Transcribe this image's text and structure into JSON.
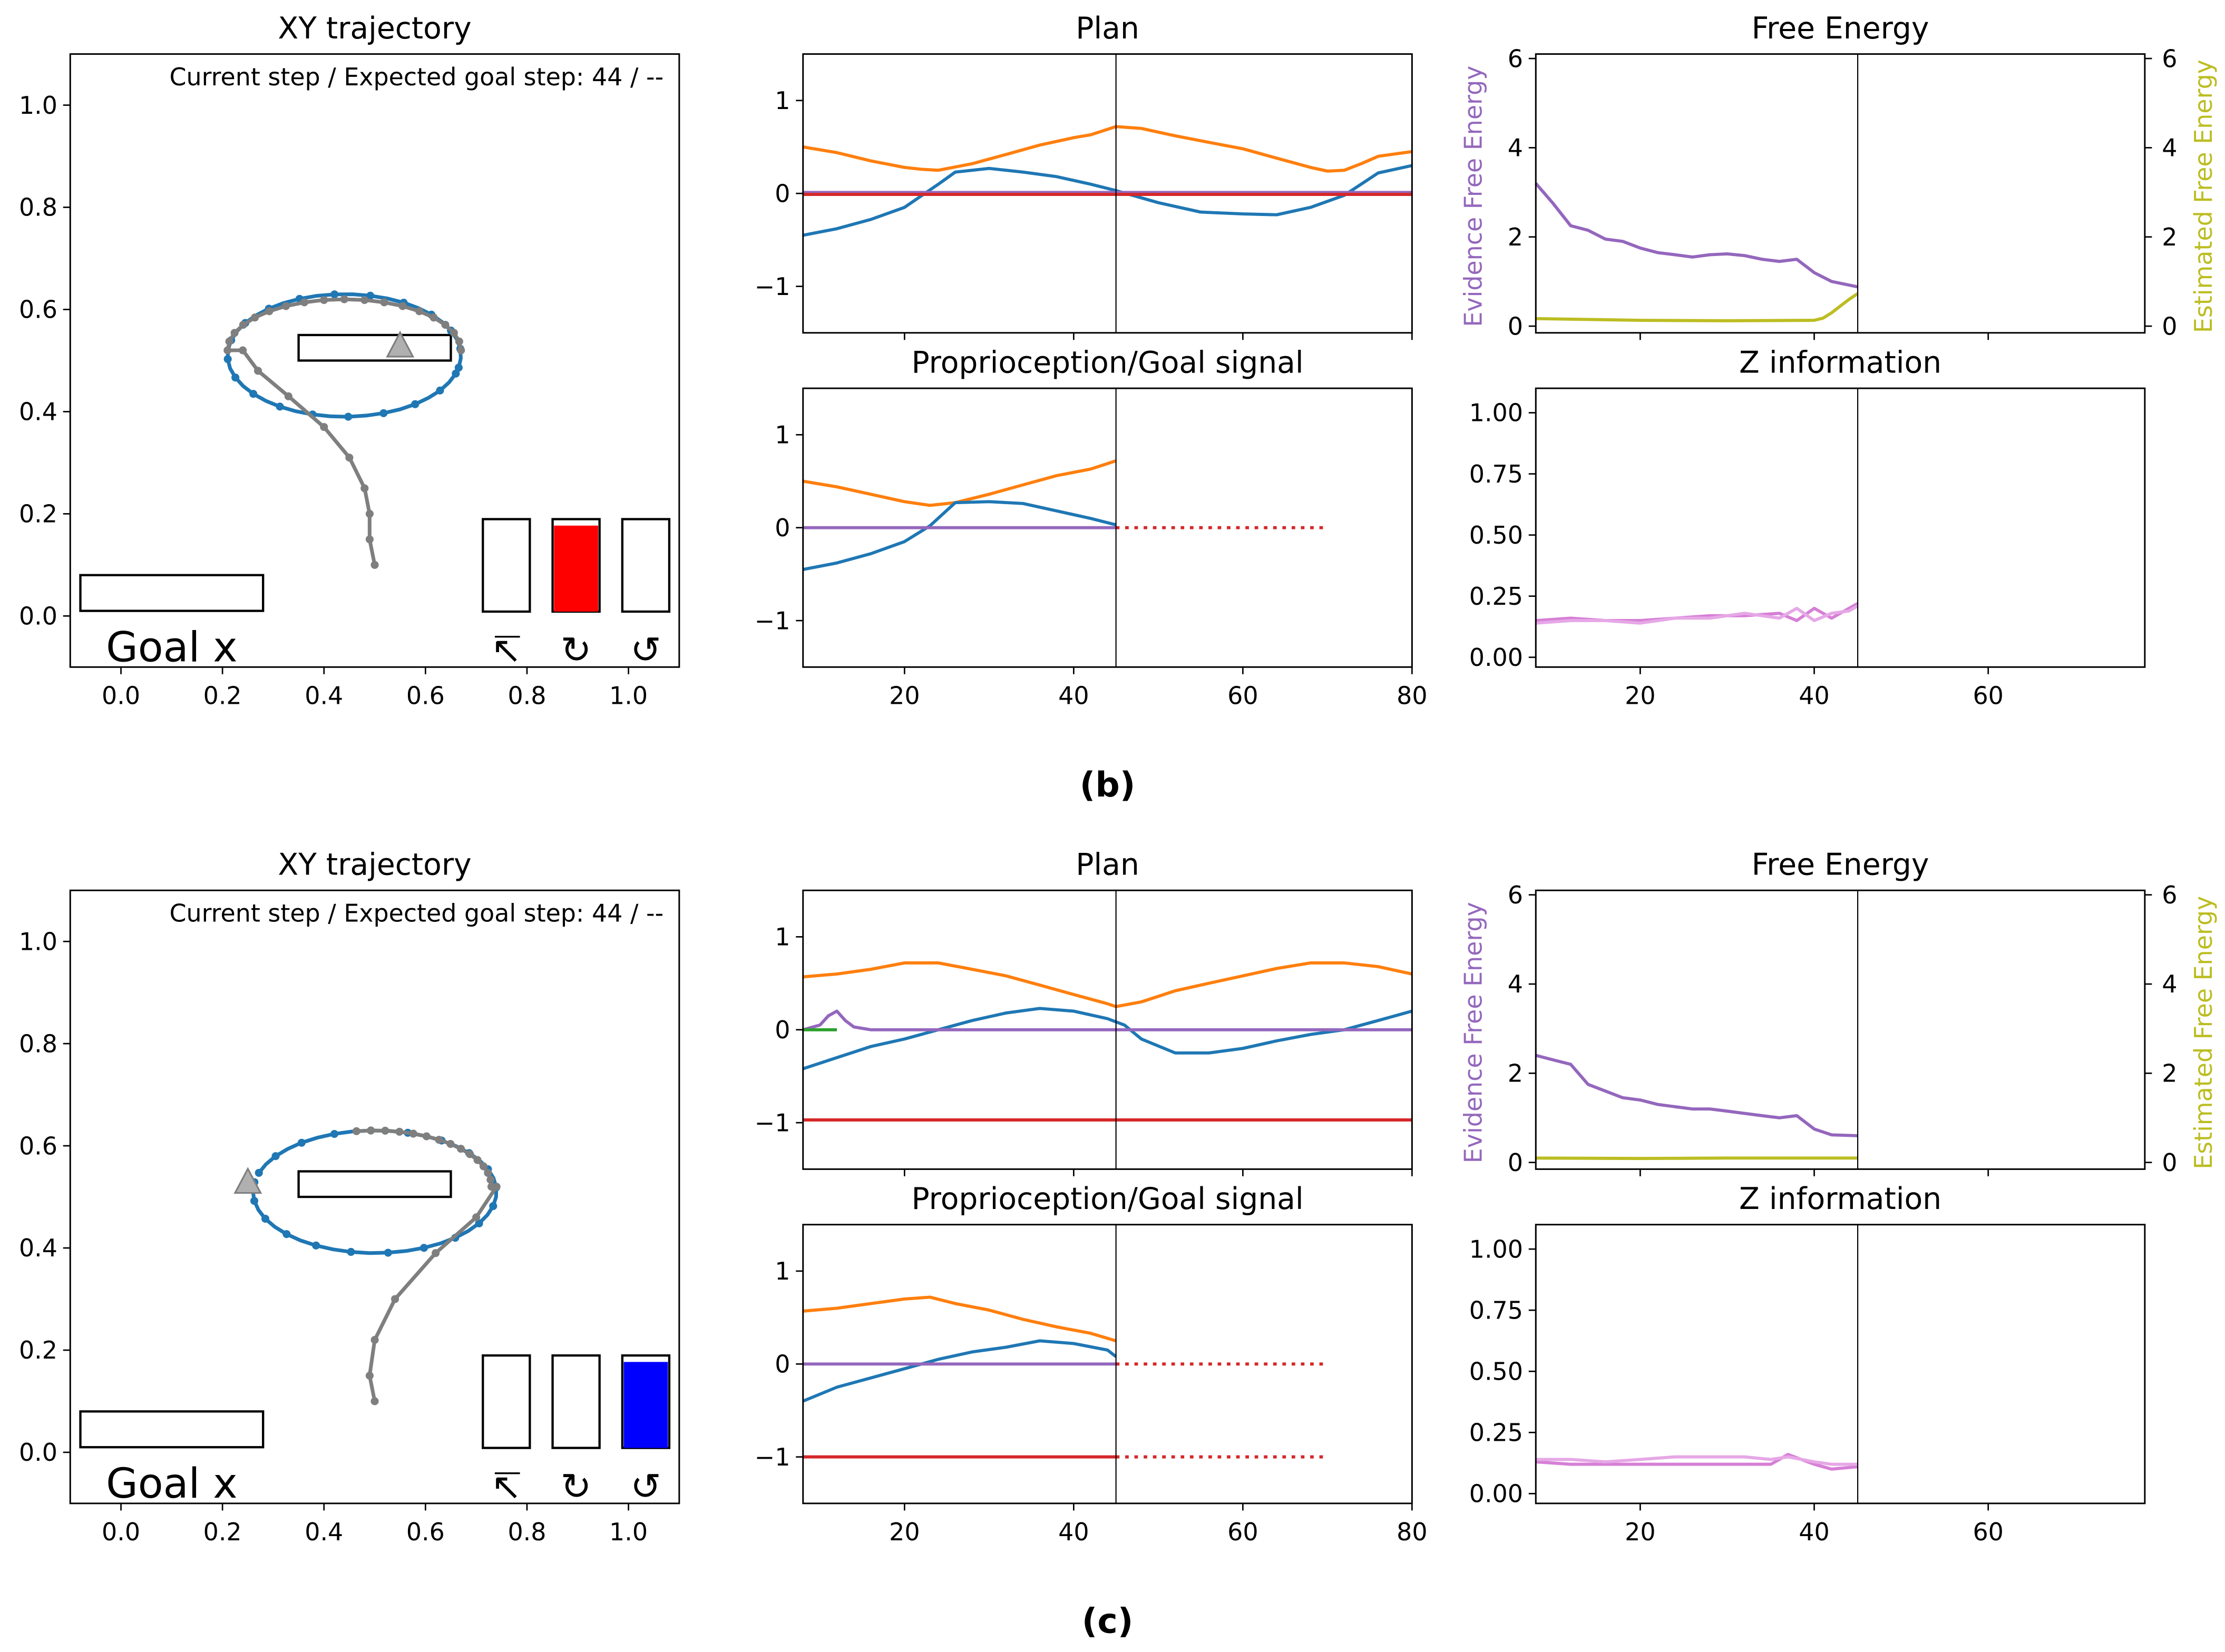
{
  "panels": [
    {
      "label": "(b)",
      "xy": {
        "title": "XY trajectory",
        "status": "Current step / Expected goal step: 44 / --",
        "goal_label": "Goal x",
        "x_ticks": [
          "0.0",
          "0.2",
          "0.4",
          "0.6",
          "0.8",
          "1.0"
        ],
        "y_ticks": [
          "0.0",
          "0.2",
          "0.4",
          "0.6",
          "0.8",
          "1.0"
        ],
        "arrow_x": 0.55,
        "indicators": [
          {
            "name": "forward",
            "glyph": "↸",
            "fill": 0.0,
            "color": "#ff0000"
          },
          {
            "name": "rotate-cw",
            "glyph": "↻",
            "fill": 0.93,
            "color": "#ff0000"
          },
          {
            "name": "rotate-ccw",
            "glyph": "↺",
            "fill": 0.0,
            "color": "#ff0000"
          }
        ]
      },
      "plan": {
        "title": "Plan",
        "y_ticks": [
          "1",
          "0",
          "−1"
        ],
        "series": [
          {
            "name": "orange",
            "color": "#ff7f0e",
            "x": [
              8,
              12,
              16,
              20,
              22,
              24,
              28,
              32,
              36,
              40,
              42,
              45,
              48,
              52,
              56,
              60,
              64,
              68,
              70,
              72,
              74,
              76,
              80
            ],
            "y": [
              0.5,
              0.44,
              0.35,
              0.28,
              0.26,
              0.25,
              0.32,
              0.42,
              0.52,
              0.6,
              0.63,
              0.72,
              0.7,
              0.62,
              0.55,
              0.48,
              0.38,
              0.28,
              0.24,
              0.25,
              0.32,
              0.4,
              0.45
            ]
          },
          {
            "name": "blue",
            "color": "#1f77b4",
            "x": [
              8,
              12,
              16,
              20,
              24,
              26,
              30,
              34,
              38,
              42,
              45,
              50,
              55,
              60,
              64,
              68,
              72,
              76,
              80
            ],
            "y": [
              -0.45,
              -0.38,
              -0.28,
              -0.15,
              0.1,
              0.23,
              0.27,
              0.23,
              0.18,
              0.1,
              0.03,
              -0.1,
              -0.2,
              -0.22,
              -0.23,
              -0.15,
              -0.02,
              0.22,
              0.3
            ]
          },
          {
            "name": "purple",
            "color": "#9467bd",
            "x": [
              8,
              80
            ],
            "y": [
              0.01,
              0.01
            ]
          },
          {
            "name": "red",
            "color": "#d62728",
            "x": [
              8,
              80
            ],
            "y": [
              -0.01,
              -0.01
            ]
          }
        ]
      },
      "proprio": {
        "title": "Proprioception/Goal signal",
        "y_ticks": [
          "1",
          "0",
          "−1"
        ],
        "x_ticks": [
          "20",
          "40",
          "60",
          "80"
        ],
        "series": [
          {
            "name": "orange",
            "color": "#ff7f0e",
            "x": [
              8,
              12,
              16,
              20,
              23,
              26,
              30,
              34,
              38,
              42,
              45
            ],
            "y": [
              0.5,
              0.44,
              0.36,
              0.28,
              0.24,
              0.27,
              0.36,
              0.46,
              0.56,
              0.63,
              0.72
            ]
          },
          {
            "name": "blue",
            "color": "#1f77b4",
            "x": [
              8,
              12,
              16,
              20,
              23,
              26,
              30,
              34,
              38,
              42,
              45
            ],
            "y": [
              -0.45,
              -0.38,
              -0.28,
              -0.15,
              0.02,
              0.27,
              0.28,
              0.26,
              0.18,
              0.1,
              0.03
            ]
          },
          {
            "name": "purple",
            "color": "#9467bd",
            "x": [
              8,
              45
            ],
            "y": [
              0,
              0
            ]
          },
          {
            "name": "red",
            "color": "#d62728",
            "dashed": true,
            "x": [
              45,
              70
            ],
            "y": [
              0,
              0
            ]
          }
        ]
      },
      "fe": {
        "title": "Free Energy",
        "ylabel_left": "Evidence Free Energy",
        "ylabel_right": "Estimated Free Energy",
        "color_left": "#9467bd",
        "color_right": "#bcbd22",
        "y_ticks": [
          "6",
          "4",
          "2",
          "0"
        ],
        "series": [
          {
            "name": "evidence",
            "color": "#9467bd",
            "x": [
              8,
              10,
              12,
              14,
              16,
              18,
              20,
              22,
              24,
              26,
              28,
              30,
              32,
              34,
              36,
              38,
              40,
              42,
              45
            ],
            "y": [
              3.2,
              2.75,
              2.25,
              2.15,
              1.95,
              1.9,
              1.75,
              1.65,
              1.6,
              1.55,
              1.6,
              1.62,
              1.58,
              1.5,
              1.45,
              1.5,
              1.2,
              1.0,
              0.88
            ]
          },
          {
            "name": "estimated",
            "color": "#bcbd22",
            "x": [
              8,
              20,
              30,
              40,
              41,
              42,
              43,
              44,
              45
            ],
            "y": [
              0.17,
              0.13,
              0.12,
              0.13,
              0.18,
              0.3,
              0.45,
              0.6,
              0.73
            ]
          }
        ]
      },
      "z": {
        "title": "Z information",
        "y_ticks": [
          "1.00",
          "0.75",
          "0.50",
          "0.25",
          "0.00"
        ],
        "x_ticks": [
          "20",
          "40",
          "60"
        ],
        "series": [
          {
            "name": "z-1",
            "color": "#d67fd6",
            "x": [
              8,
              12,
              16,
              20,
              24,
              28,
              32,
              36,
              38,
              40,
              42,
              44,
              45
            ],
            "y": [
              0.15,
              0.16,
              0.15,
              0.15,
              0.16,
              0.17,
              0.17,
              0.18,
              0.15,
              0.2,
              0.16,
              0.2,
              0.22
            ]
          },
          {
            "name": "z-2",
            "color": "#e6a8e6",
            "x": [
              8,
              12,
              16,
              20,
              24,
              28,
              32,
              36,
              38,
              40,
              42,
              44,
              45
            ],
            "y": [
              0.14,
              0.15,
              0.15,
              0.14,
              0.16,
              0.16,
              0.18,
              0.16,
              0.2,
              0.15,
              0.18,
              0.19,
              0.21
            ]
          }
        ]
      }
    },
    {
      "label": "(c)",
      "xy": {
        "title": "XY trajectory",
        "status": "Current step / Expected goal step: 44 / --",
        "goal_label": "Goal x",
        "x_ticks": [
          "0.0",
          "0.2",
          "0.4",
          "0.6",
          "0.8",
          "1.0"
        ],
        "y_ticks": [
          "0.0",
          "0.2",
          "0.4",
          "0.6",
          "0.8",
          "1.0"
        ],
        "arrow_x": 0.25,
        "indicators": [
          {
            "name": "forward",
            "glyph": "↸",
            "fill": 0.0,
            "color": "#0000ff"
          },
          {
            "name": "rotate-cw",
            "glyph": "↻",
            "fill": 0.0,
            "color": "#0000ff"
          },
          {
            "name": "rotate-ccw",
            "glyph": "↺",
            "fill": 0.93,
            "color": "#0000ff"
          }
        ]
      },
      "plan": {
        "title": "Plan",
        "y_ticks": [
          "1",
          "0",
          "−1"
        ],
        "series": [
          {
            "name": "orange",
            "color": "#ff7f0e",
            "x": [
              8,
              12,
              16,
              20,
              24,
              28,
              32,
              36,
              40,
              44,
              45,
              48,
              52,
              56,
              60,
              64,
              68,
              72,
              76,
              80
            ],
            "y": [
              0.57,
              0.6,
              0.65,
              0.72,
              0.72,
              0.65,
              0.58,
              0.48,
              0.38,
              0.28,
              0.25,
              0.3,
              0.42,
              0.5,
              0.58,
              0.66,
              0.72,
              0.72,
              0.68,
              0.6
            ]
          },
          {
            "name": "blue",
            "color": "#1f77b4",
            "x": [
              8,
              12,
              16,
              20,
              24,
              28,
              32,
              36,
              40,
              44,
              46,
              48,
              52,
              56,
              60,
              64,
              68,
              72,
              76,
              80
            ],
            "y": [
              -0.42,
              -0.3,
              -0.18,
              -0.1,
              0.0,
              0.1,
              0.18,
              0.23,
              0.2,
              0.12,
              0.05,
              -0.1,
              -0.25,
              -0.25,
              -0.2,
              -0.12,
              -0.05,
              0.0,
              0.1,
              0.2
            ]
          },
          {
            "name": "purple",
            "color": "#9467bd",
            "x": [
              8,
              10,
              11,
              12,
              13,
              14,
              16,
              80
            ],
            "y": [
              0.0,
              0.05,
              0.15,
              0.2,
              0.1,
              0.03,
              0.0,
              0.0
            ]
          },
          {
            "name": "green",
            "color": "#2ca02c",
            "x": [
              8,
              12
            ],
            "y": [
              0.0,
              0.0
            ]
          },
          {
            "name": "red",
            "color": "#d62728",
            "x": [
              8,
              80
            ],
            "y": [
              -0.97,
              -0.97
            ]
          }
        ]
      },
      "proprio": {
        "title": "Proprioception/Goal signal",
        "y_ticks": [
          "1",
          "0",
          "−1"
        ],
        "x_ticks": [
          "20",
          "40",
          "60",
          "80"
        ],
        "series": [
          {
            "name": "orange",
            "color": "#ff7f0e",
            "x": [
              8,
              12,
              16,
              20,
              23,
              26,
              30,
              34,
              38,
              42,
              45
            ],
            "y": [
              0.57,
              0.6,
              0.65,
              0.7,
              0.72,
              0.65,
              0.58,
              0.48,
              0.4,
              0.33,
              0.25
            ]
          },
          {
            "name": "blue",
            "color": "#1f77b4",
            "x": [
              8,
              12,
              16,
              20,
              24,
              28,
              32,
              36,
              40,
              44,
              45
            ],
            "y": [
              -0.4,
              -0.25,
              -0.15,
              -0.05,
              0.05,
              0.13,
              0.18,
              0.25,
              0.22,
              0.15,
              0.08
            ]
          },
          {
            "name": "purple",
            "color": "#9467bd",
            "x": [
              8,
              45
            ],
            "y": [
              0,
              0
            ]
          },
          {
            "name": "red-solid",
            "color": "#d62728",
            "x": [
              8,
              45
            ],
            "y": [
              -1,
              -1
            ]
          },
          {
            "name": "red-dashed-0",
            "color": "#d62728",
            "dashed": true,
            "x": [
              45,
              70
            ],
            "y": [
              0,
              0
            ]
          },
          {
            "name": "red-dashed-1",
            "color": "#d62728",
            "dashed": true,
            "x": [
              45,
              70
            ],
            "y": [
              -1,
              -1
            ]
          }
        ]
      },
      "fe": {
        "title": "Free Energy",
        "ylabel_left": "Evidence Free Energy",
        "ylabel_right": "Estimated Free Energy",
        "color_left": "#9467bd",
        "color_right": "#bcbd22",
        "y_ticks": [
          "6",
          "4",
          "2",
          "0"
        ],
        "series": [
          {
            "name": "evidence",
            "color": "#9467bd",
            "x": [
              8,
              10,
              12,
              14,
              16,
              18,
              20,
              22,
              24,
              26,
              28,
              30,
              32,
              34,
              36,
              38,
              40,
              42,
              45
            ],
            "y": [
              2.4,
              2.3,
              2.2,
              1.75,
              1.6,
              1.45,
              1.4,
              1.3,
              1.25,
              1.2,
              1.2,
              1.15,
              1.1,
              1.05,
              1.0,
              1.05,
              0.75,
              0.62,
              0.6
            ]
          },
          {
            "name": "estimated",
            "color": "#bcbd22",
            "x": [
              8,
              20,
              30,
              45
            ],
            "y": [
              0.1,
              0.09,
              0.1,
              0.1
            ]
          }
        ]
      },
      "z": {
        "title": "Z information",
        "y_ticks": [
          "1.00",
          "0.75",
          "0.50",
          "0.25",
          "0.00"
        ],
        "x_ticks": [
          "20",
          "40",
          "60"
        ],
        "series": [
          {
            "name": "z-1",
            "color": "#d67fd6",
            "x": [
              8,
              12,
              16,
              20,
              24,
              28,
              32,
              35,
              37,
              40,
              42,
              45
            ],
            "y": [
              0.13,
              0.12,
              0.12,
              0.12,
              0.12,
              0.12,
              0.12,
              0.12,
              0.16,
              0.12,
              0.1,
              0.11
            ]
          },
          {
            "name": "z-2",
            "color": "#e6a8e6",
            "x": [
              8,
              12,
              16,
              20,
              24,
              28,
              32,
              35,
              37,
              40,
              42,
              45
            ],
            "y": [
              0.14,
              0.14,
              0.13,
              0.14,
              0.15,
              0.15,
              0.15,
              0.14,
              0.15,
              0.13,
              0.12,
              0.12
            ]
          }
        ]
      }
    }
  ],
  "chart_data": [
    {
      "type": "line",
      "title": "Plan",
      "panel": "(b)",
      "xlim": [
        8,
        80
      ],
      "ylim": [
        -1.5,
        1.5
      ]
    },
    {
      "type": "line",
      "title": "Proprioception/Goal signal",
      "panel": "(b)",
      "xlim": [
        8,
        80
      ],
      "ylim": [
        -1.5,
        1.5
      ]
    },
    {
      "type": "line",
      "title": "Free Energy",
      "panel": "(b)",
      "xlim": [
        8,
        78
      ],
      "ylim": [
        0,
        6
      ]
    },
    {
      "type": "line",
      "title": "Z information",
      "panel": "(b)",
      "xlim": [
        8,
        78
      ],
      "ylim": [
        -0.04,
        1.1
      ]
    },
    {
      "type": "line",
      "title": "Plan",
      "panel": "(c)",
      "xlim": [
        8,
        80
      ],
      "ylim": [
        -1.5,
        1.5
      ]
    },
    {
      "type": "line",
      "title": "Proprioception/Goal signal",
      "panel": "(c)",
      "xlim": [
        8,
        80
      ],
      "ylim": [
        -1.5,
        1.5
      ]
    },
    {
      "type": "line",
      "title": "Free Energy",
      "panel": "(c)",
      "xlim": [
        8,
        78
      ],
      "ylim": [
        0,
        6
      ]
    },
    {
      "type": "line",
      "title": "Z information",
      "panel": "(c)",
      "xlim": [
        8,
        78
      ],
      "ylim": [
        -0.04,
        1.1
      ]
    }
  ]
}
